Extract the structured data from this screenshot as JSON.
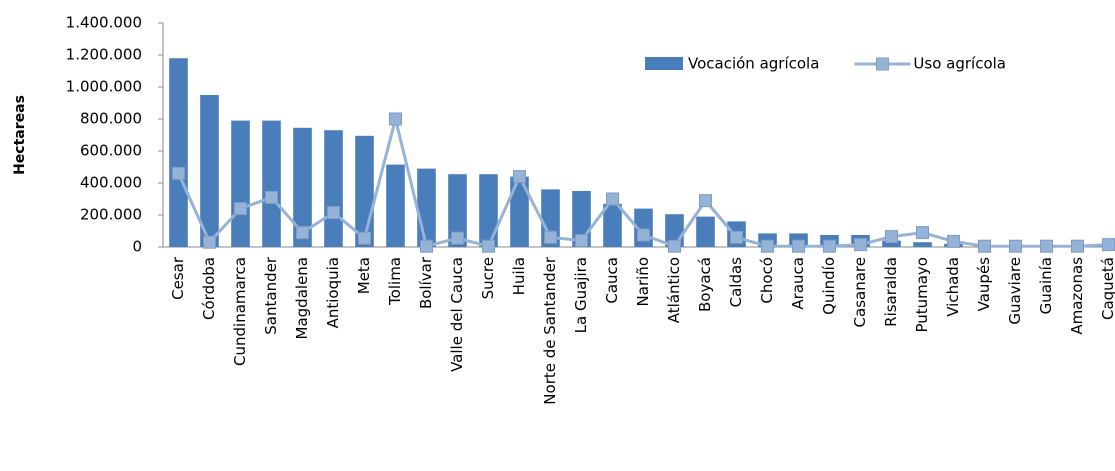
{
  "chart_data": {
    "type": "bar_line",
    "y_label": "Hectareas",
    "categories": [
      "Cesar",
      "Córdoba",
      "Cundinamarca",
      "Santander",
      "Magdalena",
      "Antioquia",
      "Meta",
      "Tolima",
      "Bolívar",
      "Valle del Cauca",
      "Sucre",
      "Huila",
      "Norte de Santander",
      "La Guajira",
      "Cauca",
      "Nariño",
      "Atlántico",
      "Boyacá",
      "Caldas",
      "Chocó",
      "Arauca",
      "Quindío",
      "Casanare",
      "Risaralda",
      "Putumayo",
      "Vichada",
      "Vaupés",
      "Guaviare",
      "Guainía",
      "Amazonas",
      "Caquetá"
    ],
    "series": [
      {
        "name": "Vocación agrícola",
        "type": "bar",
        "color": "#4a7ebb",
        "values": [
          1180000,
          950000,
          790000,
          790000,
          745000,
          730000,
          695000,
          515000,
          490000,
          455000,
          455000,
          440000,
          360000,
          350000,
          270000,
          240000,
          205000,
          190000,
          160000,
          85000,
          85000,
          75000,
          75000,
          40000,
          30000,
          20000,
          5000,
          5000,
          5000,
          5000,
          10000
        ]
      },
      {
        "name": "Uso agrícola",
        "type": "line",
        "color": "#95b3d7",
        "values": [
          460000,
          30000,
          240000,
          310000,
          90000,
          215000,
          55000,
          800000,
          5000,
          55000,
          5000,
          440000,
          60000,
          40000,
          300000,
          75000,
          5000,
          290000,
          60000,
          5000,
          5000,
          5000,
          15000,
          65000,
          90000,
          35000,
          5000,
          5000,
          5000,
          5000,
          15000
        ]
      }
    ],
    "ylim": [
      0,
      1400000
    ],
    "yticks": [
      0,
      {
        "value": 200000,
        "label": "200.000"
      },
      {
        "value": 400000,
        "label": "400.000"
      },
      {
        "value": 600000,
        "label": "600.000"
      },
      {
        "value": 800000,
        "label": "800.000"
      },
      {
        "value": 1000000,
        "label": "1.000.000"
      },
      {
        "value": 1200000,
        "label": "1.200.000"
      },
      {
        "value": 1400000,
        "label": "1.400.000"
      }
    ],
    "legend": "top-right"
  }
}
